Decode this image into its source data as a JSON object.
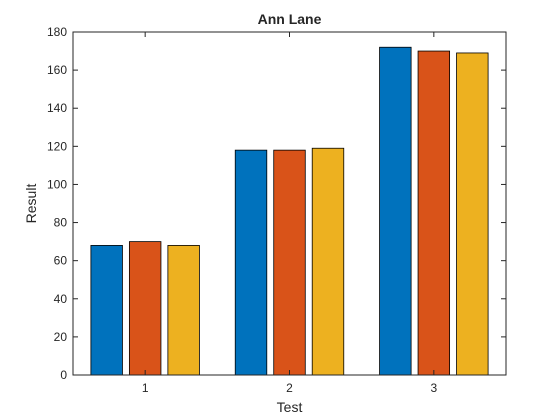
{
  "chart_data": {
    "type": "bar",
    "title": "Ann Lane",
    "xlabel": "Test",
    "ylabel": "Result",
    "categories": [
      "1",
      "2",
      "3"
    ],
    "series": [
      {
        "values": [
          68,
          118,
          172
        ],
        "color": "#0072BD"
      },
      {
        "values": [
          70,
          118,
          170
        ],
        "color": "#D95319"
      },
      {
        "values": [
          68,
          119,
          169
        ],
        "color": "#EDB120"
      }
    ],
    "ylim": [
      0,
      180
    ],
    "yticks": [
      0,
      20,
      40,
      60,
      80,
      100,
      120,
      140,
      160,
      180
    ],
    "grid": false,
    "legend": "none"
  }
}
